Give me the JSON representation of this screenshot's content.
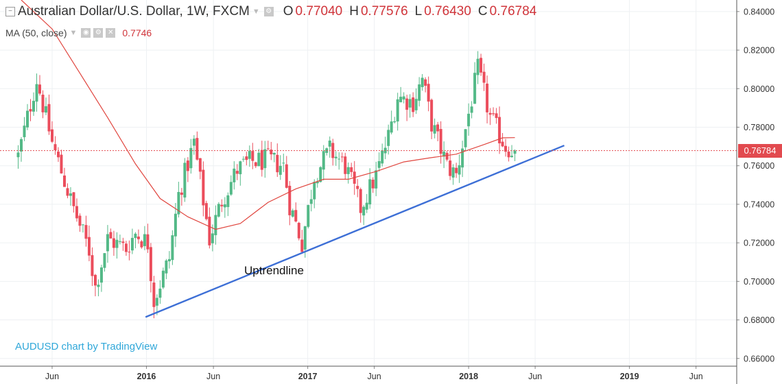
{
  "header": {
    "symbol_title": "Australian Dollar/U.S. Dollar, 1W, FXCM",
    "open_label": "O",
    "open_value": "0.77040",
    "high_label": "H",
    "high_value": "0.77576",
    "low_label": "L",
    "low_value": "0.76430",
    "close_label": "C",
    "close_value": "0.76784",
    "ma_label": "MA (50, close)",
    "ma_value": "0.7746"
  },
  "attribution": "AUDUSD chart by TradingView",
  "colors": {
    "up": "#53b987",
    "down": "#eb4d5c",
    "ma": "#e0453e",
    "trendline": "#3d6fd6",
    "price_line": "#e24a4f",
    "attribution": "#2fa7d9"
  },
  "icons": [
    "collapse-icon",
    "caret-down-icon",
    "settings-icon",
    "eye-icon",
    "close-icon"
  ],
  "chart_data": {
    "type": "candlestick",
    "timeframe": "1W",
    "y_ticks": [
      "0.84000",
      "0.82000",
      "0.80000",
      "0.78000",
      "0.76000",
      "0.74000",
      "0.72000",
      "0.70000",
      "0.68000",
      "0.66000"
    ],
    "ylim": [
      0.656,
      0.846
    ],
    "x_ticks": [
      {
        "label": "Jun",
        "date": "2015-06-01",
        "bold": false
      },
      {
        "label": "2016",
        "date": "2016-01-01",
        "bold": true
      },
      {
        "label": "Jun",
        "date": "2016-06-01",
        "bold": false
      },
      {
        "label": "2017",
        "date": "2017-01-01",
        "bold": true
      },
      {
        "label": "Jun",
        "date": "2017-06-01",
        "bold": false
      },
      {
        "label": "2018",
        "date": "2018-01-01",
        "bold": true
      },
      {
        "label": "Jun",
        "date": "2018-06-01",
        "bold": false
      },
      {
        "label": "2019",
        "date": "2019-01-01",
        "bold": true
      },
      {
        "label": "Jun",
        "date": "2019-06-01",
        "bold": false
      }
    ],
    "last_price": "0.76784",
    "annotation": "Uptrendline",
    "trendline": {
      "start": {
        "date": "2015-12-30",
        "price": 0.6815
      },
      "end": {
        "date": "2018-08-06",
        "price": 0.7705
      }
    },
    "close_path": [
      {
        "date": "2015-03-16",
        "price": 0.765
      },
      {
        "date": "2015-04-27",
        "price": 0.805
      },
      {
        "date": "2015-06-01",
        "price": 0.772
      },
      {
        "date": "2015-07-13",
        "price": 0.742
      },
      {
        "date": "2015-08-24",
        "price": 0.716
      },
      {
        "date": "2015-09-07",
        "price": 0.697
      },
      {
        "date": "2015-10-05",
        "price": 0.722
      },
      {
        "date": "2015-11-16",
        "price": 0.717
      },
      {
        "date": "2015-12-07",
        "price": 0.725
      },
      {
        "date": "2016-01-04",
        "price": 0.72
      },
      {
        "date": "2016-01-18",
        "price": 0.69
      },
      {
        "date": "2016-02-22",
        "price": 0.712
      },
      {
        "date": "2016-03-14",
        "price": 0.745
      },
      {
        "date": "2016-04-18",
        "price": 0.772
      },
      {
        "date": "2016-05-23",
        "price": 0.722
      },
      {
        "date": "2016-06-20",
        "price": 0.742
      },
      {
        "date": "2016-07-25",
        "price": 0.758
      },
      {
        "date": "2016-08-22",
        "price": 0.762
      },
      {
        "date": "2016-10-03",
        "price": 0.763
      },
      {
        "date": "2016-11-07",
        "price": 0.76
      },
      {
        "date": "2016-11-21",
        "price": 0.74
      },
      {
        "date": "2016-12-19",
        "price": 0.72
      },
      {
        "date": "2017-01-16",
        "price": 0.755
      },
      {
        "date": "2017-02-20",
        "price": 0.768
      },
      {
        "date": "2017-03-27",
        "price": 0.76
      },
      {
        "date": "2017-05-01",
        "price": 0.738
      },
      {
        "date": "2017-06-05",
        "price": 0.755
      },
      {
        "date": "2017-07-03",
        "price": 0.775
      },
      {
        "date": "2017-07-24",
        "price": 0.796
      },
      {
        "date": "2017-08-28",
        "price": 0.793
      },
      {
        "date": "2017-09-18",
        "price": 0.805
      },
      {
        "date": "2017-10-09",
        "price": 0.782
      },
      {
        "date": "2017-11-13",
        "price": 0.76
      },
      {
        "date": "2017-12-04",
        "price": 0.755
      },
      {
        "date": "2018-01-01",
        "price": 0.787
      },
      {
        "date": "2018-01-22",
        "price": 0.81
      },
      {
        "date": "2018-02-19",
        "price": 0.785
      },
      {
        "date": "2018-03-26",
        "price": 0.77
      },
      {
        "date": "2018-04-16",
        "price": 0.768
      }
    ],
    "ma_path": [
      {
        "date": "2015-03-23",
        "price": 0.846
      },
      {
        "date": "2015-06-01",
        "price": 0.831
      },
      {
        "date": "2015-08-03",
        "price": 0.808
      },
      {
        "date": "2015-10-05",
        "price": 0.785
      },
      {
        "date": "2015-12-07",
        "price": 0.761
      },
      {
        "date": "2016-02-01",
        "price": 0.743
      },
      {
        "date": "2016-04-04",
        "price": 0.7335
      },
      {
        "date": "2016-06-06",
        "price": 0.727
      },
      {
        "date": "2016-08-01",
        "price": 0.73
      },
      {
        "date": "2016-10-03",
        "price": 0.741
      },
      {
        "date": "2016-12-05",
        "price": 0.748
      },
      {
        "date": "2017-02-06",
        "price": 0.753
      },
      {
        "date": "2017-04-03",
        "price": 0.753
      },
      {
        "date": "2017-06-05",
        "price": 0.757
      },
      {
        "date": "2017-08-07",
        "price": 0.762
      },
      {
        "date": "2017-10-02",
        "price": 0.764
      },
      {
        "date": "2017-12-04",
        "price": 0.766
      },
      {
        "date": "2018-02-05",
        "price": 0.771
      },
      {
        "date": "2018-03-19",
        "price": 0.7745
      },
      {
        "date": "2018-04-16",
        "price": 0.7746
      }
    ]
  }
}
